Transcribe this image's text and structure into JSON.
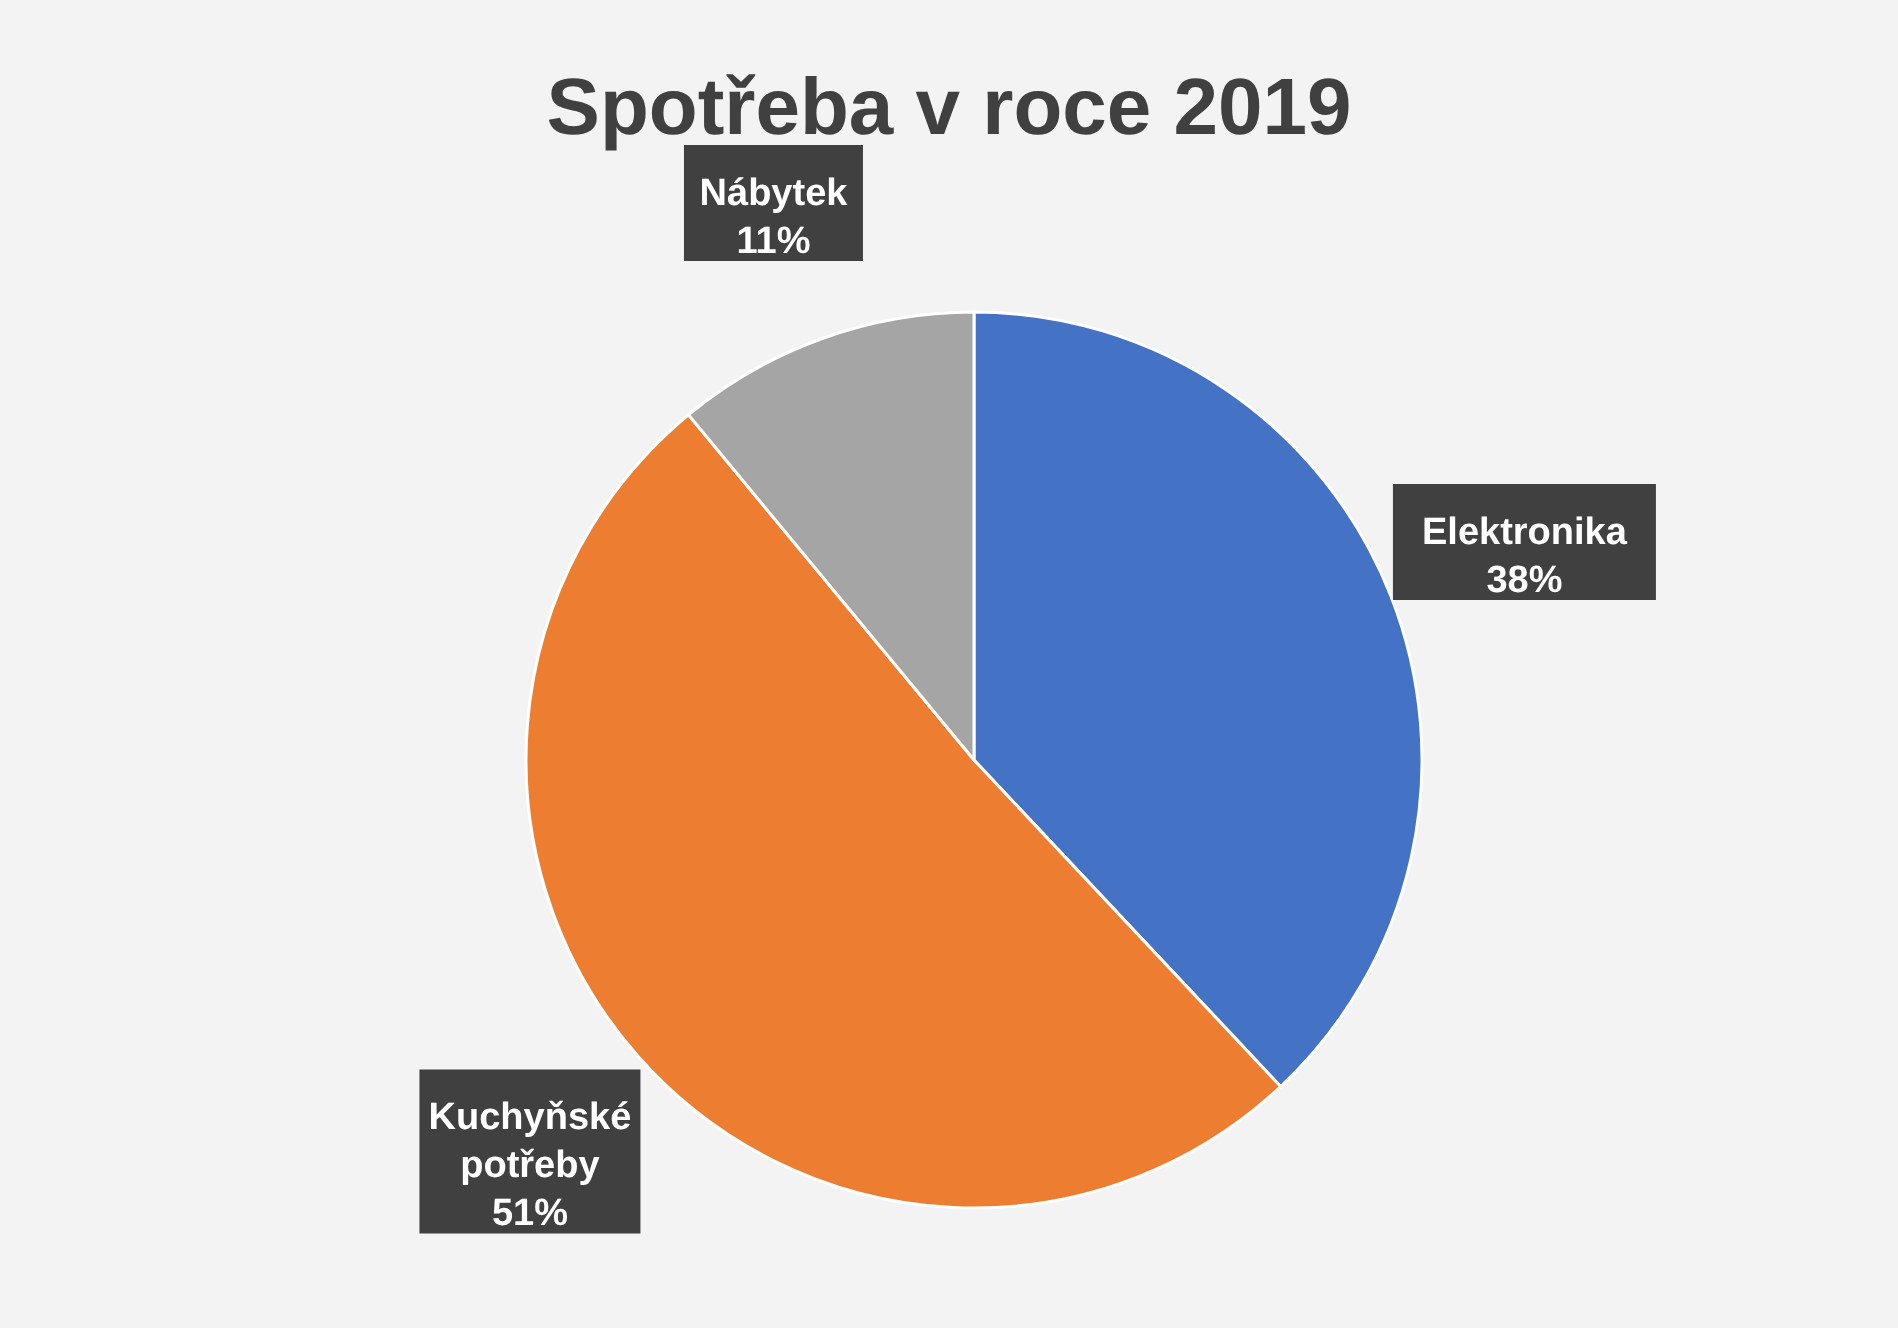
{
  "chart_data": {
    "type": "pie",
    "title": "Spotřeba v roce 2019",
    "categories": [
      "Elektronika",
      "Kuchyňské potřeby",
      "Nábytek"
    ],
    "values": [
      38,
      51,
      11
    ],
    "colors": [
      "#4472c4",
      "#ed7d31",
      "#a5a5a5"
    ],
    "value_labels": [
      "38%",
      "51%",
      "11%"
    ],
    "legend": false
  }
}
